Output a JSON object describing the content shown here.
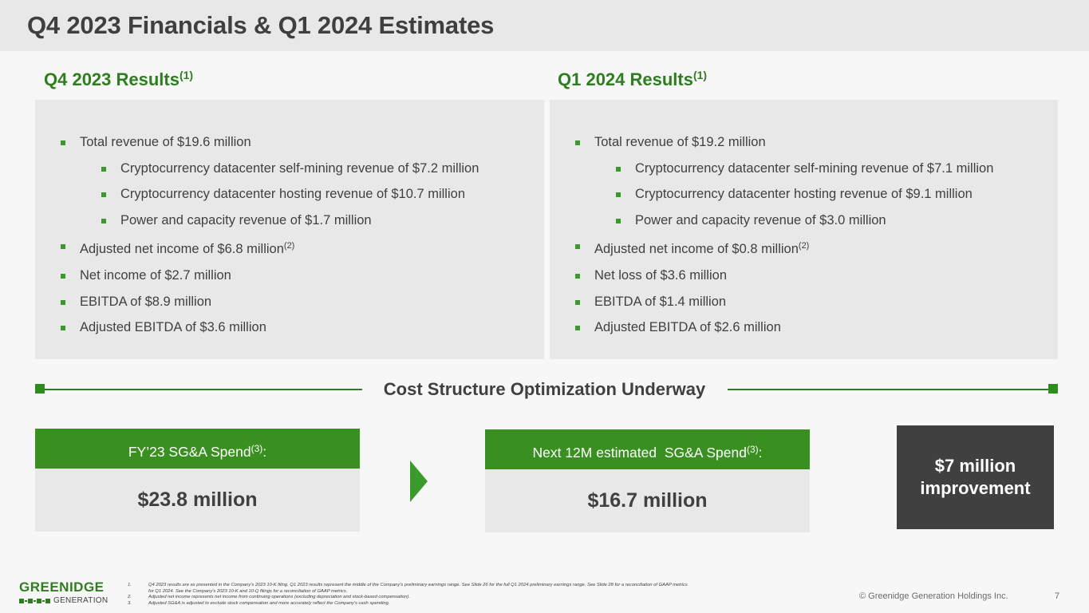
{
  "title": "Q4 2023 Financials & Q1 2024 Estimates",
  "left": {
    "heading": "Q4 2023 Results",
    "heading_note": "(1)",
    "items": [
      {
        "text": "Total revenue of $19.6 million",
        "note": "",
        "level": 1
      },
      {
        "text": "Cryptocurrency datacenter self-mining revenue of $7.2 million",
        "note": "",
        "level": 2
      },
      {
        "text": "Cryptocurrency datacenter hosting revenue of $10.7 million",
        "note": "",
        "level": 2
      },
      {
        "text": "Power and capacity revenue of $1.7 million",
        "note": "",
        "level": 2
      },
      {
        "text": "Adjusted net income of $6.8 million",
        "note": "(2)",
        "level": 1
      },
      {
        "text": "Net income of $2.7 million",
        "note": "",
        "level": 1
      },
      {
        "text": "EBITDA of $8.9 million",
        "note": "",
        "level": 1
      },
      {
        "text": "Adjusted EBITDA of $3.6 million",
        "note": "",
        "level": 1
      }
    ]
  },
  "right": {
    "heading": "Q1 2024 Results",
    "heading_note": "(1)",
    "items": [
      {
        "text": "Total revenue of $19.2 million",
        "note": "",
        "level": 1
      },
      {
        "text": "Cryptocurrency datacenter self-mining revenue of $7.1 million",
        "note": "",
        "level": 2
      },
      {
        "text": "Cryptocurrency datacenter hosting revenue of $9.1 million",
        "note": "",
        "level": 2
      },
      {
        "text": "Power and capacity revenue of $3.0 million",
        "note": "",
        "level": 2
      },
      {
        "text": "Adjusted net income of $0.8 million",
        "note": "(2)",
        "level": 1
      },
      {
        "text": "Net loss of $3.6 million",
        "note": "",
        "level": 1
      },
      {
        "text": "EBITDA of $1.4 million",
        "note": "",
        "level": 1
      },
      {
        "text": "Adjusted EBITDA of $2.6 million",
        "note": "",
        "level": 1
      }
    ]
  },
  "divider": {
    "label": "Cost Structure Optimization Underway"
  },
  "spend": {
    "fy23_label": "FY’23 SG&A Spend",
    "fy23_note": "(3)",
    "fy23_suffix": ":",
    "fy23_value": "$23.8 million",
    "next_label": "Next 12M estimated  SG&A Spend",
    "next_note": "(3)",
    "next_suffix": ":",
    "next_value": "$16.7 million"
  },
  "improvement": "$7 million improvement",
  "logo": {
    "top": "GREENIDGE",
    "bottom": "GENERATION"
  },
  "footnotes": [
    {
      "num": "1.",
      "text": "Q4 2023 results are as presented in the Company's  2023 10-K filing. Q1 2023 results represent the  middle of the Company's preliminary earnings range. See Slide 26 for the full Q1 2024 preliminary earnings range. See Slide 28 for a  reconciliation of GAAP  metrics  for Q1 2024.  See the Company's  2023 10-K and 10-Q filings for a reconciliation of GAAP  metrics."
    },
    {
      "num": "2.",
      "text": "Adjusted net income represents  net income from continuing operations (excluding  depreciation and stock-based  compensation)."
    },
    {
      "num": "3.",
      "text": "Adjusted SG&A  is adjusted to exclude stock compensation and more accurately reflect the Company's  cash spending."
    }
  ],
  "copyright": "© Greenidge Generation Holdings Inc.",
  "page_number": "7",
  "colors": {
    "accent_green": "#2e7d1f",
    "bullet_green": "#3a9b2b",
    "panel_gray": "#e8e8e8",
    "dark": "#404040"
  }
}
